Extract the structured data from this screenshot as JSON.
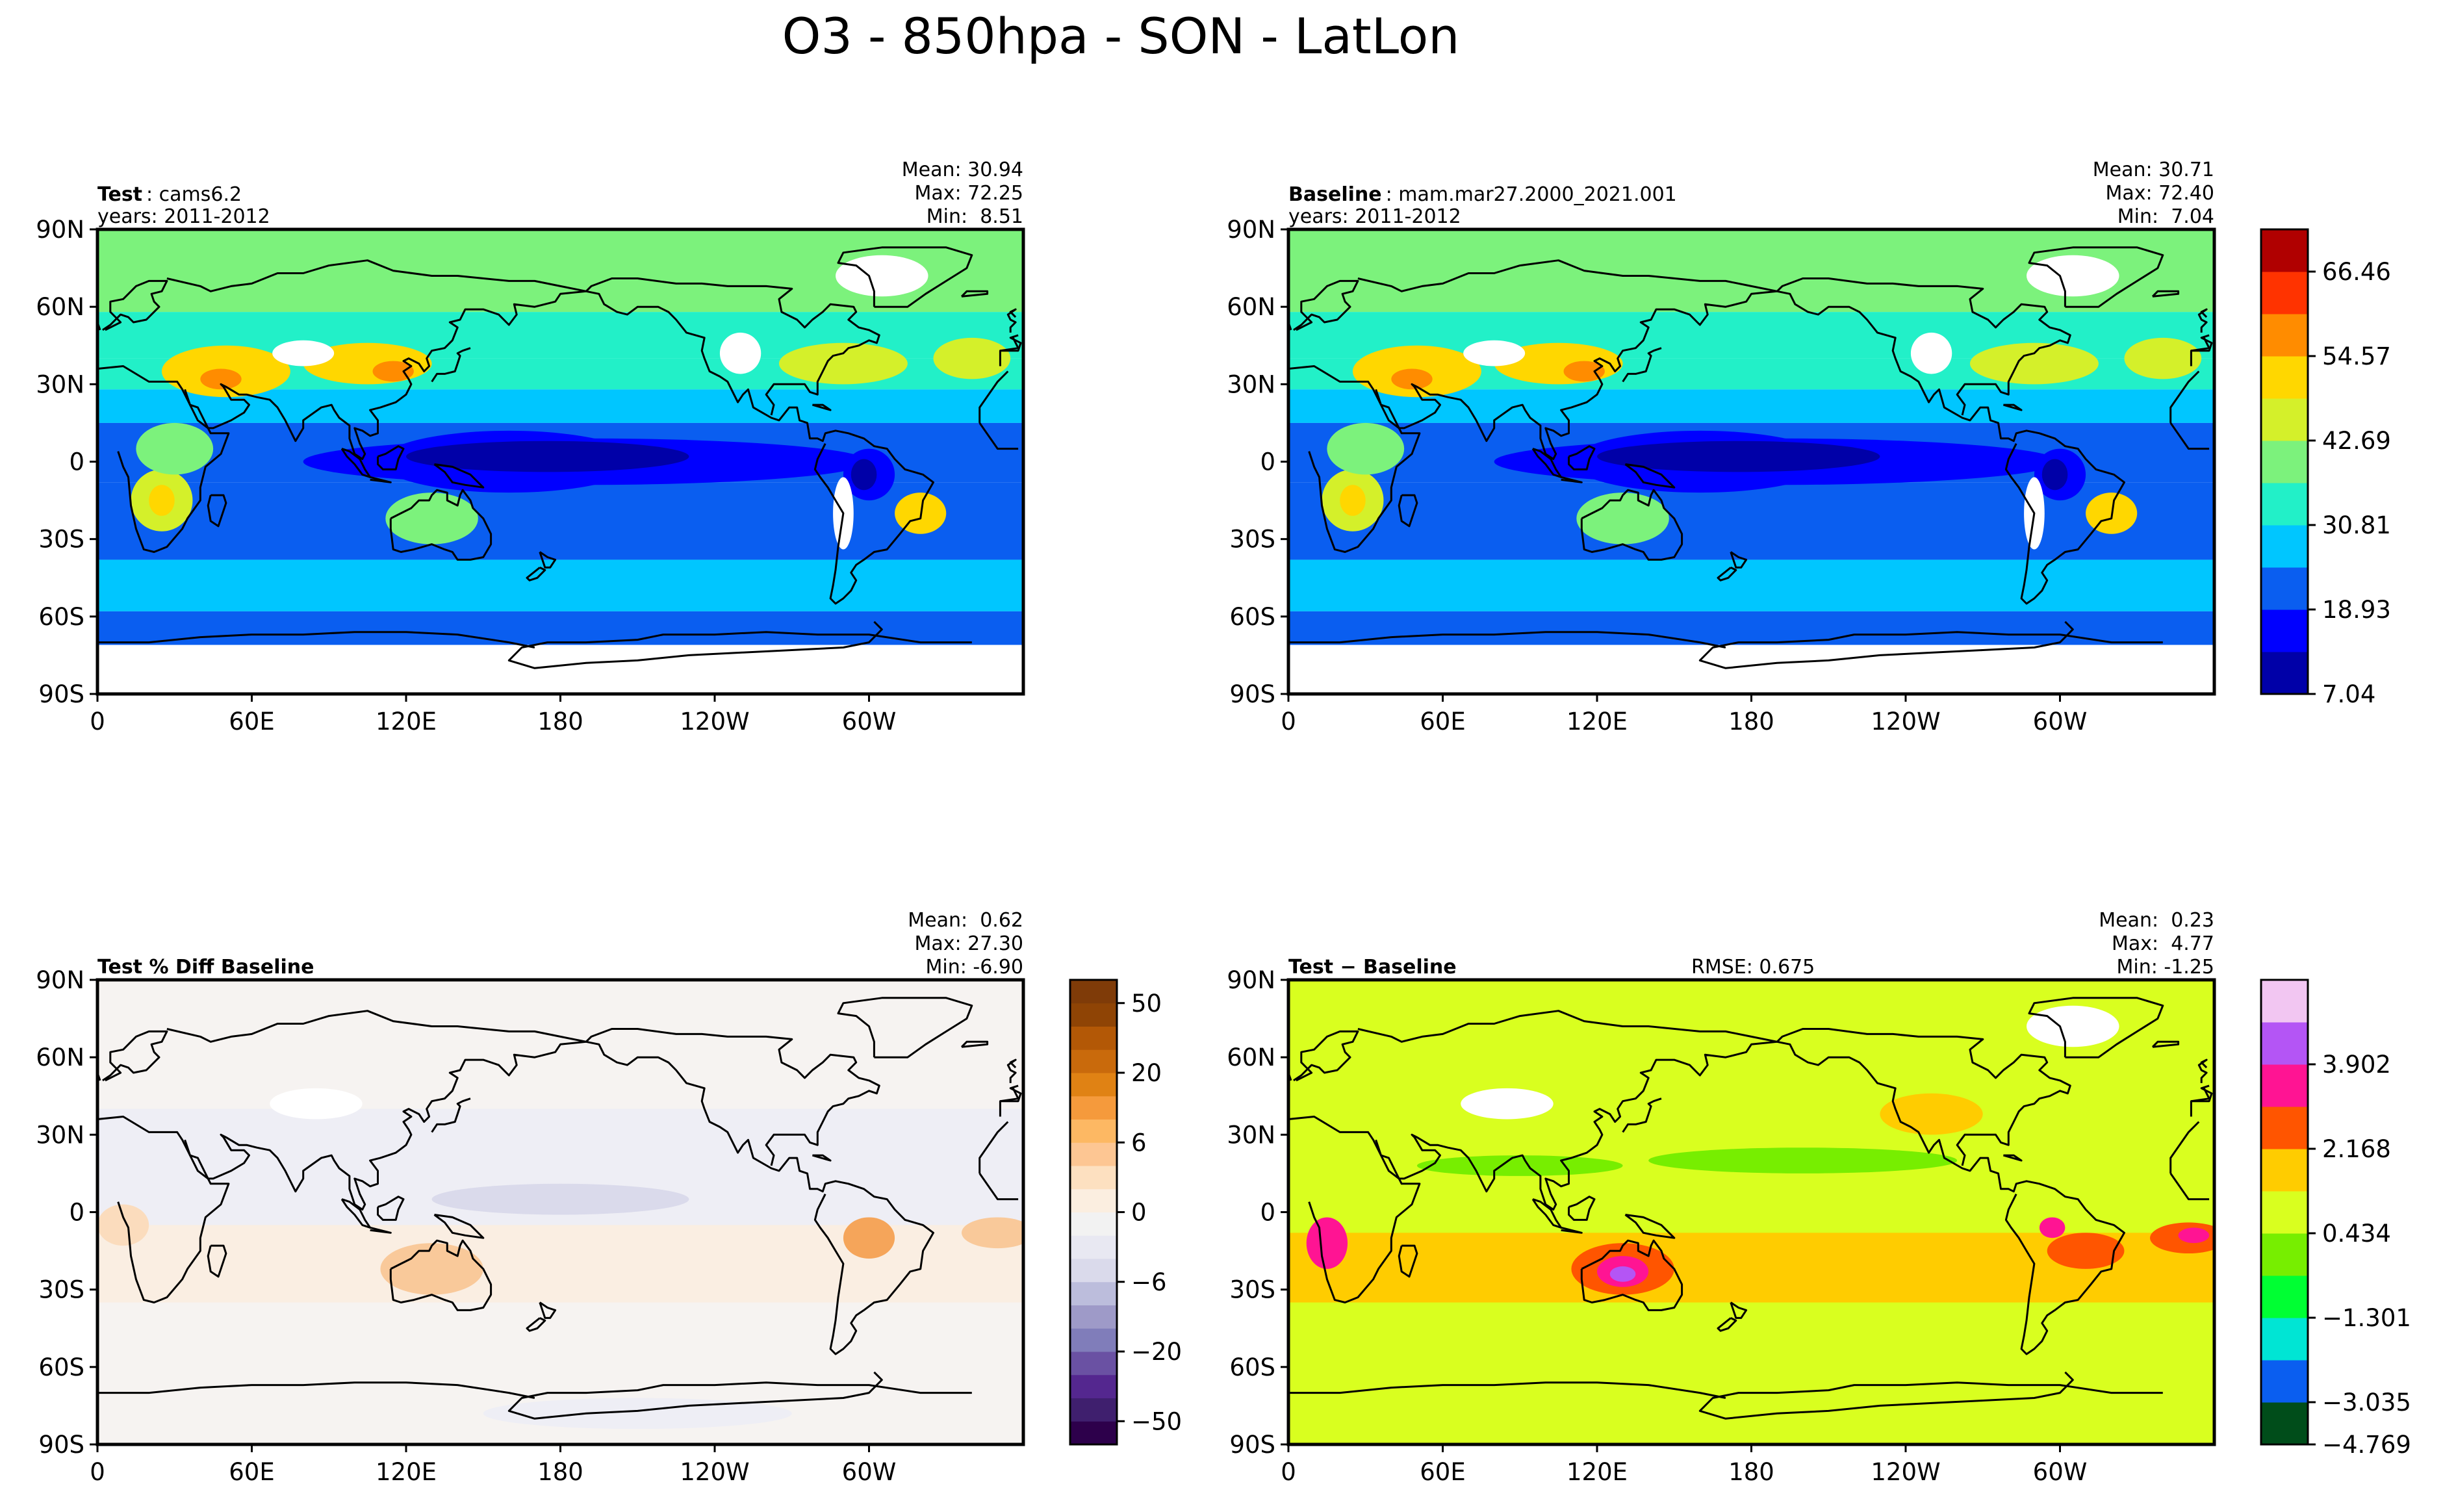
{
  "figure": {
    "title": "O3 - 850hpa - SON - LatLon"
  },
  "chart_data": [
    {
      "type": "heatmap",
      "panel": "test",
      "label_bold": "Test",
      "label_rest": ": cams6.2",
      "years": "years: 2011-2012",
      "stats": [
        "Mean: 30.94",
        "Max: 72.25",
        "Min:  8.51"
      ],
      "mean": 30.94,
      "max": 72.25,
      "min": 8.51,
      "xlabel": "",
      "ylabel": "",
      "xlim": [
        0,
        360
      ],
      "ylim": [
        -90,
        90
      ],
      "xticks": [
        "0",
        "60E",
        "120E",
        "180",
        "120W",
        "60W"
      ],
      "yticks": [
        "90N",
        "60N",
        "30N",
        "0",
        "30S",
        "60S",
        "90S"
      ],
      "colormap": "o3_absolute"
    },
    {
      "type": "heatmap",
      "panel": "baseline",
      "label_bold": "Baseline",
      "label_rest": ": mam.mar27.2000_2021.001",
      "years": "years: 2011-2012",
      "stats": [
        "Mean: 30.71",
        "Max: 72.40",
        "Min:  7.04"
      ],
      "mean": 30.71,
      "max": 72.4,
      "min": 7.04,
      "xlabel": "",
      "ylabel": "",
      "xlim": [
        0,
        360
      ],
      "ylim": [
        -90,
        90
      ],
      "xticks": [
        "0",
        "60E",
        "120E",
        "180",
        "120W",
        "60W"
      ],
      "yticks": [
        "90N",
        "60N",
        "30N",
        "0",
        "30S",
        "60S",
        "90S"
      ],
      "colorbar": {
        "ticks": [
          "66.46",
          "54.57",
          "42.69",
          "30.81",
          "18.93",
          "7.04"
        ],
        "colors": [
          "#0000a8",
          "#0000ff",
          "#0a5ef0",
          "#00c6ff",
          "#22f0c8",
          "#7cf27c",
          "#d4f02a",
          "#ffd700",
          "#ff8c00",
          "#ff3300",
          "#b00000"
        ]
      }
    },
    {
      "type": "heatmap",
      "panel": "pctdiff",
      "label_bold": "Test % Diff Baseline",
      "stats": [
        "Mean:  0.62",
        "Max: 27.30",
        "Min: -6.90"
      ],
      "mean": 0.62,
      "max": 27.3,
      "min": -6.9,
      "xlabel": "",
      "ylabel": "",
      "xlim": [
        0,
        360
      ],
      "ylim": [
        -90,
        90
      ],
      "xticks": [
        "0",
        "60E",
        "120E",
        "180",
        "120W",
        "60W"
      ],
      "yticks": [
        "90N",
        "60N",
        "30N",
        "0",
        "30S",
        "60S",
        "90S"
      ],
      "colorbar": {
        "ticks": [
          "50",
          "20",
          "6",
          "0",
          "−6",
          "−20",
          "−50"
        ],
        "colors": [
          "#2d004b",
          "#3f1f6e",
          "#54278f",
          "#6a51a3",
          "#807dba",
          "#9e9ac8",
          "#bcbddc",
          "#dadaeb",
          "#e8e8f2",
          "#f2f2f2",
          "#fbeee0",
          "#fde0c0",
          "#fdc693",
          "#fdb863",
          "#f59a3c",
          "#e08214",
          "#c96a0c",
          "#b35806",
          "#8f4405",
          "#7f3b08"
        ]
      }
    },
    {
      "type": "heatmap",
      "panel": "diff",
      "label_bold": "Test − Baseline",
      "rmse": "RMSE: 0.675",
      "stats": [
        "Mean:  0.23",
        "Max:  4.77",
        "Min: -1.25"
      ],
      "mean": 0.23,
      "max": 4.77,
      "min": -1.25,
      "xlabel": "",
      "ylabel": "",
      "xlim": [
        0,
        360
      ],
      "ylim": [
        -90,
        90
      ],
      "xticks": [
        "0",
        "60E",
        "120E",
        "180",
        "120W",
        "60W"
      ],
      "yticks": [
        "90N",
        "60N",
        "30N",
        "0",
        "30S",
        "60S",
        "90S"
      ],
      "colorbar": {
        "ticks": [
          "3.902",
          "2.168",
          "0.434",
          "−1.301",
          "−3.035",
          "−4.769"
        ],
        "colors": [
          "#004d1a",
          "#0a5ef0",
          "#00e5d4",
          "#00ff33",
          "#77ee00",
          "#d9ff1f",
          "#ffcc00",
          "#ff5500",
          "#ff1493",
          "#b455f5",
          "#f2c6f2"
        ]
      }
    }
  ]
}
